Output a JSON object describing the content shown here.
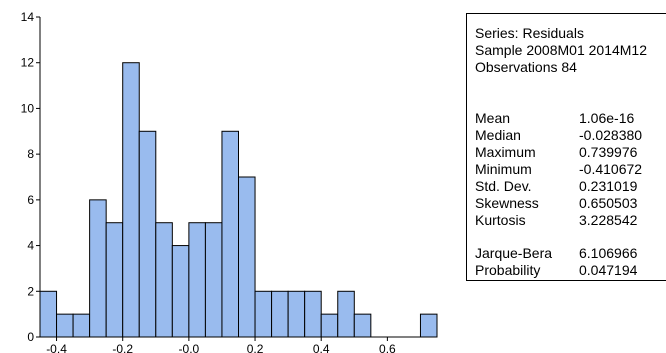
{
  "chart_data": {
    "type": "bar",
    "subtype": "histogram",
    "bin_width": 0.05,
    "bin_starts": [
      -0.45,
      -0.4,
      -0.35,
      -0.3,
      -0.25,
      -0.2,
      -0.15,
      -0.1,
      -0.05,
      0.0,
      0.05,
      0.1,
      0.15,
      0.2,
      0.25,
      0.3,
      0.35,
      0.4,
      0.45,
      0.5,
      0.55,
      0.6,
      0.65,
      0.7
    ],
    "values": [
      2,
      1,
      1,
      6,
      5,
      12,
      9,
      5,
      4,
      5,
      5,
      9,
      7,
      2,
      2,
      2,
      2,
      1,
      2,
      1,
      0,
      0,
      0,
      1
    ],
    "xlim": [
      -0.45,
      0.75
    ],
    "ylim": [
      0,
      14
    ],
    "xticks": [
      "-0.4",
      "-0.2",
      "-0.0",
      "0.2",
      "0.4",
      "0.6"
    ],
    "xtick_values": [
      -0.4,
      -0.2,
      0.0,
      0.2,
      0.4,
      0.6
    ],
    "yticks": [
      "0",
      "2",
      "4",
      "6",
      "8",
      "10",
      "12",
      "14"
    ],
    "ytick_values": [
      0,
      2,
      4,
      6,
      8,
      10,
      12,
      14
    ],
    "bar_color": "#99bbee",
    "bar_edge_color": "#000000",
    "grid": false
  },
  "stats": {
    "series": "Series: Residuals",
    "sample": "Sample 2008M01 2014M12",
    "observations": "Observations 84",
    "rows": [
      {
        "label": "Mean",
        "value": "1.06e-16"
      },
      {
        "label": "Median",
        "value": "-0.028380"
      },
      {
        "label": "Maximum",
        "value": "0.739976"
      },
      {
        "label": "Minimum",
        "value": "-0.410672"
      },
      {
        "label": "Std. Dev.",
        "value": "0.231019"
      },
      {
        "label": "Skewness",
        "value": "0.650503"
      },
      {
        "label": "Kurtosis",
        "value": "3.228542"
      }
    ],
    "test_rows": [
      {
        "label": "Jarque-Bera",
        "value": "6.106966"
      },
      {
        "label": "Probability",
        "value": "0.047194"
      }
    ]
  }
}
